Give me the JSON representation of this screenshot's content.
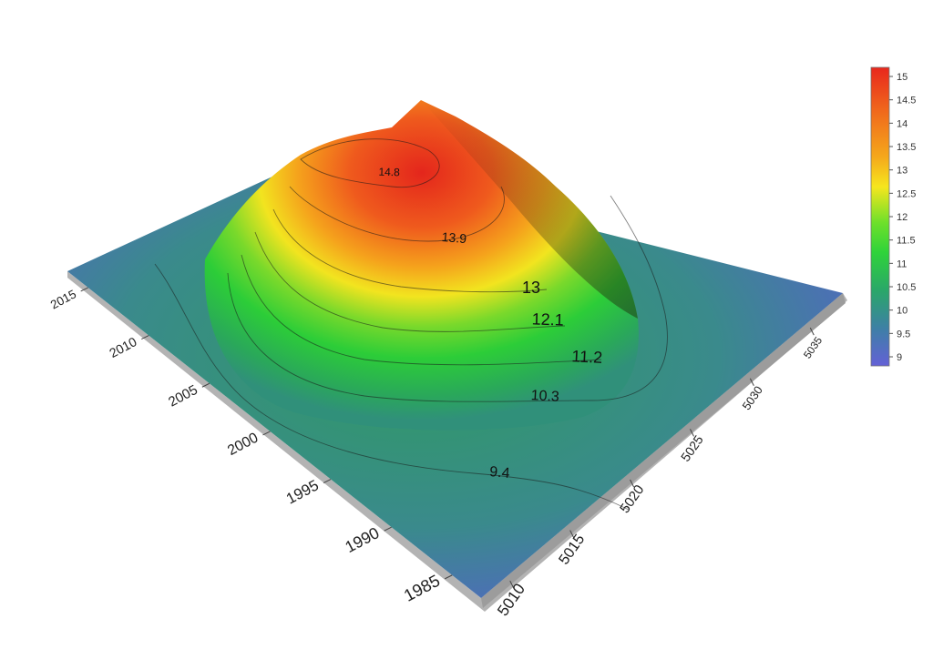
{
  "chart_data": {
    "type": "surface",
    "title": "",
    "xlabel": "",
    "ylabel": "",
    "zlabel": "",
    "x_ticks": [
      "1985",
      "1990",
      "1995",
      "2000",
      "2005",
      "2010",
      "2015"
    ],
    "y_ticks": [
      "5010",
      "5015",
      "5020",
      "5025",
      "5030",
      "5035"
    ],
    "xlim": [
      1982,
      2016
    ],
    "ylim": [
      5007,
      5037
    ],
    "zlim": [
      8.8,
      15.2
    ],
    "peak": {
      "x": 2010,
      "y": 5033,
      "z": 15.1
    },
    "contour_levels": [
      "9.4",
      "10.3",
      "11.2",
      "12.1",
      "13",
      "13.9",
      "14.8"
    ],
    "colorbar": {
      "ticks": [
        "15",
        "14.5",
        "14",
        "13.5",
        "13",
        "12.5",
        "12",
        "11.5",
        "11",
        "10.5",
        "10",
        "9.5",
        "9"
      ],
      "colors": [
        "#e8271d",
        "#f27a1c",
        "#f5c21a",
        "#f6f01e",
        "#45d93a",
        "#2bb44a",
        "#3a9a82",
        "#4c72b8",
        "#6461d6"
      ]
    }
  }
}
